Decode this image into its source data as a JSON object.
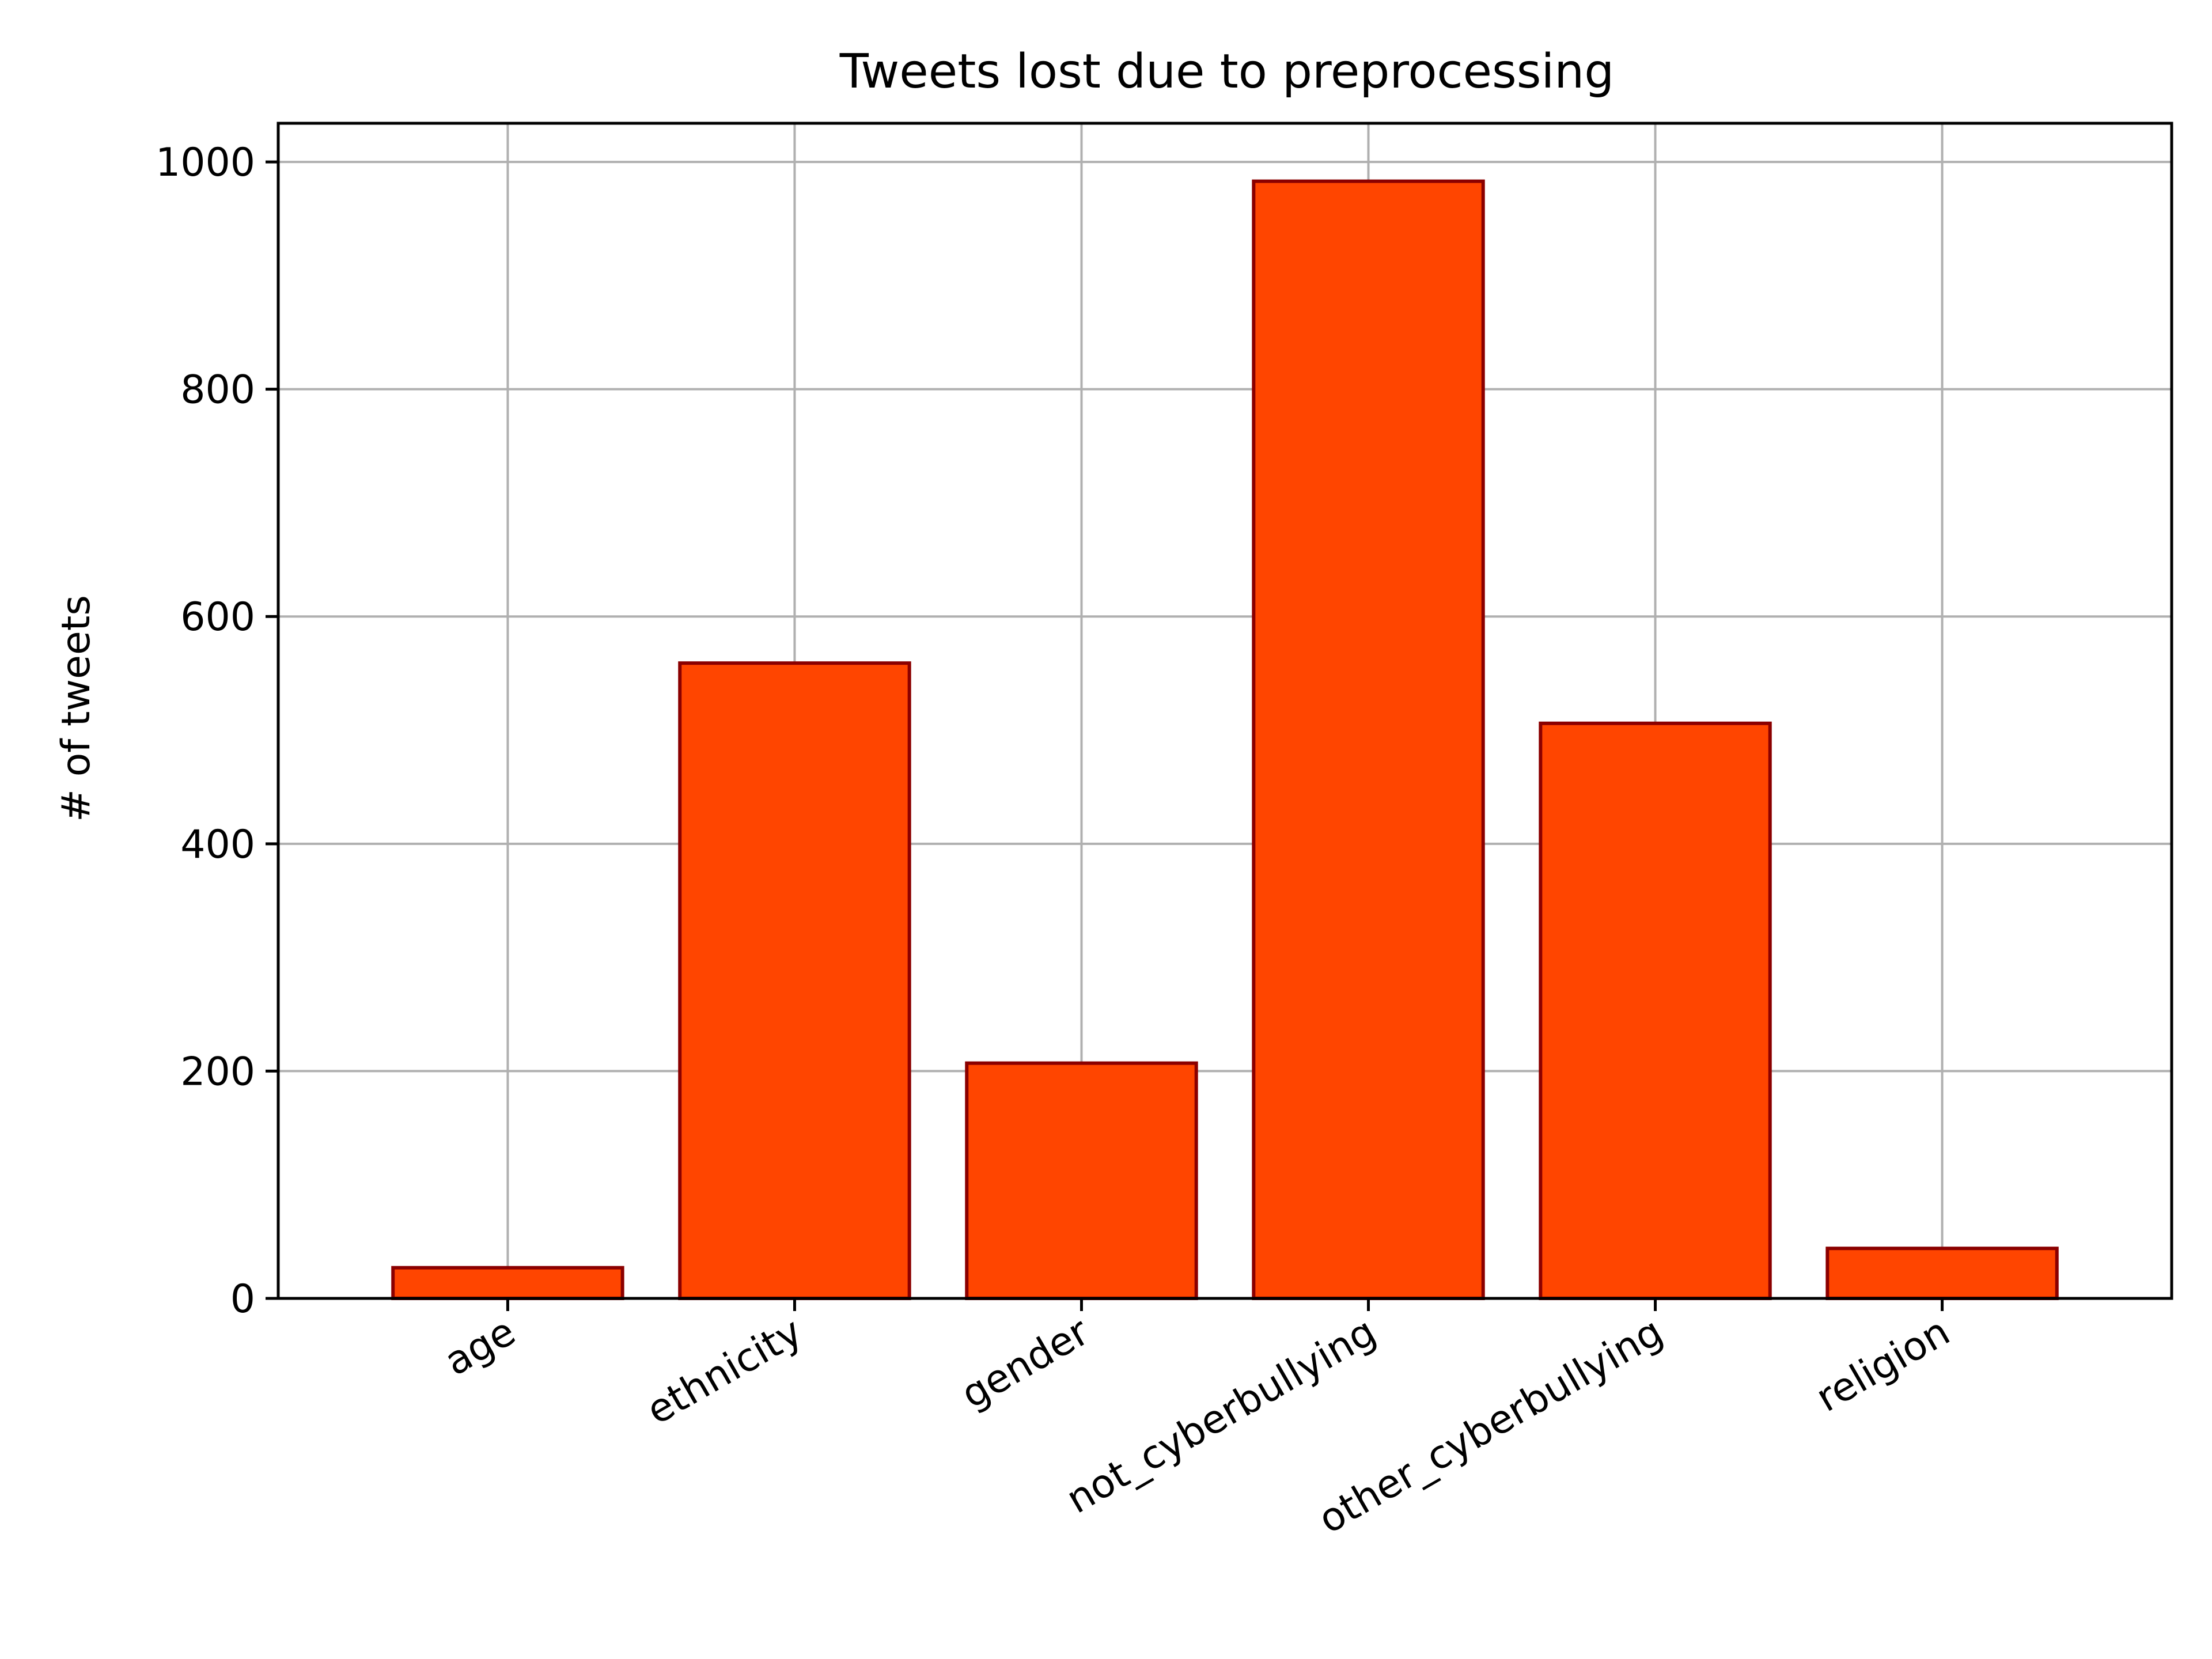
{
  "chart_data": {
    "type": "bar",
    "title": "Tweets lost due to preprocessing",
    "xlabel": "",
    "ylabel": "# of tweets",
    "categories": [
      "age",
      "ethnicity",
      "gender",
      "not_cyberbullying",
      "other_cyberbullying",
      "religion"
    ],
    "values": [
      27,
      559,
      207,
      983,
      506,
      44
    ],
    "ylim": [
      0,
      1034
    ],
    "yticks": [
      0,
      200,
      400,
      600,
      800,
      1000
    ],
    "grid": true,
    "legend": "none",
    "x_tick_rotation_deg": 30,
    "colors": {
      "bar_fill": "#ff4500",
      "bar_edge": "#8b0000",
      "grid": "#b0b0b0",
      "axis": "#000000"
    }
  }
}
